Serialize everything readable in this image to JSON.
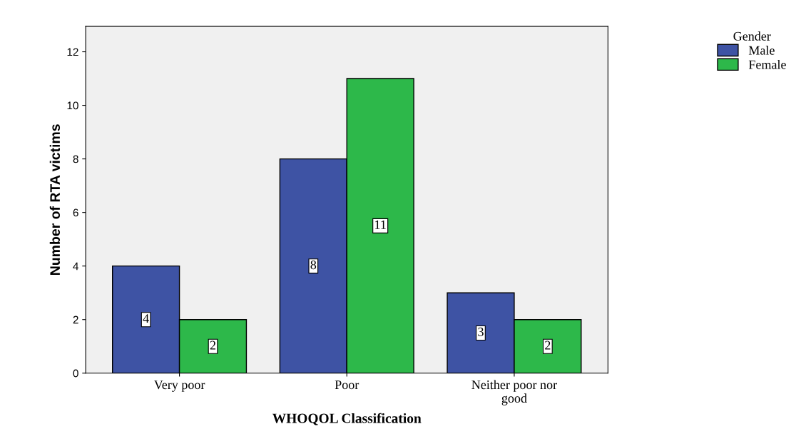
{
  "chart_data": {
    "type": "bar",
    "xlabel": "WHOQOL Classification",
    "ylabel": "Number of RTA victims",
    "legend_title": "Gender",
    "categories": [
      "Very poor",
      "Poor",
      "Neither poor nor\ngood"
    ],
    "series": [
      {
        "name": "Male",
        "color": "#3e53a4",
        "values": [
          4,
          8,
          3
        ]
      },
      {
        "name": "Female",
        "color": "#2db84a",
        "values": [
          2,
          11,
          2
        ]
      }
    ],
    "ylim": [
      0,
      12.95
    ],
    "yticks": [
      0,
      2,
      4,
      6,
      8,
      10,
      12
    ],
    "data_labels": true,
    "legend": "top right",
    "grid": false
  }
}
